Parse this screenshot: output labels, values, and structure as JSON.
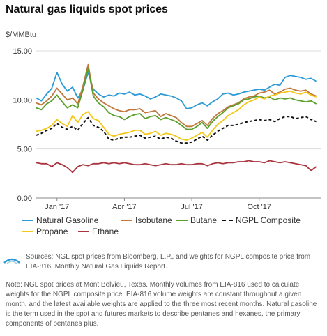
{
  "header": {
    "title": "Natural gas liquids spot prices",
    "unit": "$/MMBtu"
  },
  "footer": {
    "logo_text": "eia",
    "sources": "Sources: NGL spot prices from Bloomberg, L.P., and weights for NGPL composite price from EIA-816, Monthly Natural Gas Liquids Report.",
    "note": "Note: NGL spot prices at Mont Belvieu, Texas. Monthly volumes from EIA-816 used to calculate weights for the NGPL composite price. EIA-816 volume weights are constant throughout a given month, and the latest available weights are applied to the three most recent months. Natural gasoline is the term used in the spot and futures markets to describe pentanes and hexanes, the primary components of pentanes plus."
  },
  "chart_data": {
    "type": "line",
    "title": "Natural gas liquids spot prices",
    "ylabel": "$/MMBtu",
    "ylim": [
      0,
      15
    ],
    "yticks": [
      "0.00",
      "5.00",
      "10.00",
      "15.00"
    ],
    "xlim": [
      0,
      55
    ],
    "xticks": [
      {
        "label": "Jan '17",
        "x": 4
      },
      {
        "label": "Apr '17",
        "x": 17
      },
      {
        "label": "Jul '17",
        "x": 30
      },
      {
        "label": "Oct '17",
        "x": 43
      }
    ],
    "grid": "horizontal",
    "legend": "bottom",
    "x": [
      0,
      1,
      2,
      3,
      4,
      5,
      6,
      7,
      8,
      9,
      10,
      11,
      12,
      13,
      14,
      15,
      16,
      17,
      18,
      19,
      20,
      21,
      22,
      23,
      24,
      25,
      26,
      27,
      28,
      29,
      30,
      31,
      32,
      33,
      34,
      35,
      36,
      37,
      38,
      39,
      40,
      41,
      42,
      43,
      44,
      45,
      46,
      47,
      48,
      49,
      50,
      51,
      52,
      53,
      54
    ],
    "series": [
      {
        "name": "Natural Gasoline",
        "color": "#2b9ad6",
        "dashed": false,
        "values": [
          10.2,
          9.9,
          10.6,
          11.2,
          12.8,
          11.6,
          10.9,
          11.3,
          10.2,
          11.0,
          12.8,
          11.1,
          10.6,
          10.3,
          10.5,
          10.4,
          10.7,
          10.6,
          10.8,
          10.5,
          10.6,
          10.4,
          10.1,
          10.3,
          10.6,
          10.5,
          10.4,
          10.2,
          9.9,
          9.1,
          9.2,
          9.5,
          9.7,
          9.4,
          9.8,
          10.1,
          10.6,
          10.7,
          10.5,
          10.6,
          10.8,
          10.9,
          11.0,
          11.1,
          11.0,
          11.3,
          11.6,
          11.5,
          12.3,
          12.5,
          12.4,
          12.3,
          12.1,
          12.2,
          11.9
        ]
      },
      {
        "name": "Isobutane",
        "color": "#c1773e",
        "dashed": false,
        "values": [
          9.7,
          9.5,
          9.9,
          10.4,
          11.2,
          10.6,
          10.0,
          10.2,
          9.6,
          11.4,
          13.6,
          10.7,
          10.1,
          9.7,
          9.4,
          9.1,
          8.9,
          8.8,
          9.0,
          9.0,
          9.1,
          8.7,
          8.8,
          8.9,
          8.3,
          8.6,
          8.4,
          8.2,
          7.7,
          7.3,
          7.3,
          7.6,
          7.9,
          7.4,
          8.1,
          8.6,
          8.9,
          9.3,
          9.5,
          9.7,
          10.1,
          10.3,
          10.4,
          10.7,
          10.8,
          11.0,
          10.6,
          10.8,
          11.1,
          11.2,
          11.0,
          10.9,
          11.0,
          10.6,
          10.4
        ]
      },
      {
        "name": "Butane",
        "color": "#5aa02c",
        "dashed": false,
        "values": [
          9.2,
          9.0,
          9.6,
          9.9,
          10.5,
          9.8,
          9.2,
          9.5,
          9.2,
          11.0,
          13.2,
          10.4,
          9.7,
          9.3,
          8.7,
          8.4,
          8.3,
          8.0,
          8.3,
          8.5,
          8.6,
          8.1,
          8.3,
          8.4,
          8.0,
          8.2,
          8.0,
          7.8,
          7.4,
          7.0,
          7.0,
          7.3,
          7.7,
          7.1,
          7.8,
          8.3,
          8.7,
          9.2,
          9.4,
          9.6,
          10.0,
          10.1,
          10.3,
          10.4,
          10.2,
          10.3,
          10.0,
          10.2,
          10.1,
          10.2,
          10.0,
          9.9,
          9.8,
          9.9,
          9.6
        ]
      },
      {
        "name": "NGPL Composite",
        "color": "#111111",
        "dashed": true,
        "values": [
          6.4,
          6.6,
          6.9,
          7.1,
          7.6,
          7.2,
          7.0,
          7.3,
          6.9,
          7.6,
          8.2,
          7.4,
          7.2,
          6.8,
          6.0,
          5.9,
          6.1,
          6.2,
          6.2,
          6.3,
          6.4,
          6.1,
          6.2,
          6.3,
          6.0,
          6.2,
          6.1,
          5.8,
          5.6,
          5.6,
          5.7,
          6.0,
          6.3,
          5.9,
          6.4,
          6.8,
          7.1,
          7.4,
          7.4,
          7.5,
          7.7,
          7.8,
          7.9,
          8.0,
          7.9,
          8.0,
          7.8,
          8.1,
          8.3,
          8.3,
          8.1,
          8.2,
          8.3,
          8.0,
          7.8
        ]
      },
      {
        "name": "Propane",
        "color": "#f2c81a",
        "dashed": false,
        "values": [
          6.8,
          6.9,
          7.1,
          7.4,
          8.0,
          7.6,
          7.3,
          8.4,
          7.7,
          8.5,
          8.8,
          8.1,
          7.9,
          7.2,
          6.5,
          6.3,
          6.5,
          6.6,
          6.7,
          6.9,
          6.9,
          6.5,
          6.6,
          6.8,
          6.4,
          6.6,
          6.5,
          6.3,
          6.0,
          5.9,
          6.1,
          6.4,
          6.7,
          6.2,
          6.9,
          7.5,
          7.9,
          8.4,
          8.7,
          9.0,
          9.5,
          9.8,
          10.0,
          10.3,
          10.1,
          10.4,
          10.5,
          10.7,
          10.8,
          10.9,
          10.7,
          10.6,
          10.8,
          10.5,
          10.3
        ]
      },
      {
        "name": "Ethane",
        "color": "#a8343e",
        "dashed": false,
        "values": [
          3.6,
          3.5,
          3.5,
          3.2,
          3.6,
          3.4,
          3.1,
          2.6,
          3.2,
          3.4,
          3.3,
          3.5,
          3.5,
          3.6,
          3.5,
          3.6,
          3.5,
          3.6,
          3.5,
          3.4,
          3.4,
          3.5,
          3.4,
          3.3,
          3.4,
          3.5,
          3.4,
          3.4,
          3.5,
          3.4,
          3.4,
          3.5,
          3.5,
          3.3,
          3.5,
          3.6,
          3.5,
          3.6,
          3.6,
          3.7,
          3.7,
          3.8,
          3.7,
          3.7,
          3.6,
          3.8,
          3.7,
          3.6,
          3.7,
          3.6,
          3.5,
          3.4,
          3.3,
          2.8,
          3.2
        ]
      }
    ]
  }
}
